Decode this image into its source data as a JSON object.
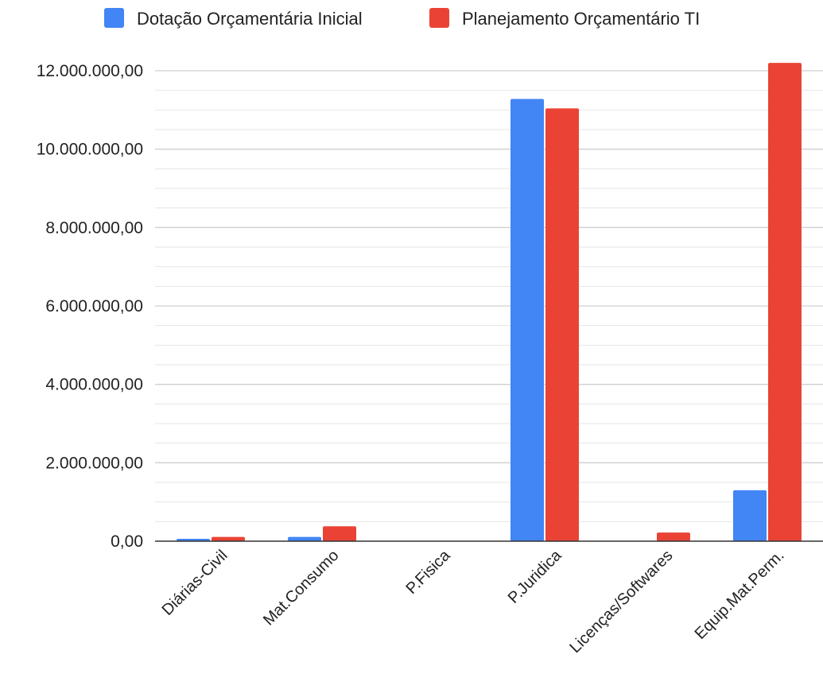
{
  "chart_data": {
    "type": "bar",
    "title": "",
    "xlabel": "",
    "ylabel": "",
    "categories": [
      "Diárias-Civil",
      "Mat.Consumo",
      "P.Fisica",
      "P.Juridica",
      "Licenças/Softwares",
      "Equip.Mat.Perm."
    ],
    "series": [
      {
        "name": "Dotação Orçamentária Inicial",
        "color": "#4285F4",
        "values": [
          60000,
          110000,
          0,
          11280000,
          0,
          1300000
        ]
      },
      {
        "name": "Planejamento Orçamentário TI",
        "color": "#EA4335",
        "values": [
          110000,
          380000,
          0,
          11040000,
          220000,
          12200000
        ]
      }
    ],
    "ylim": [
      0,
      12000000
    ],
    "yticks": [
      "0,00",
      "2.000.000,00",
      "4.000.000,00",
      "6.000.000,00",
      "8.000.000,00",
      "10.000.000,00",
      "12.000.000,00"
    ],
    "ytick_values": [
      0,
      2000000,
      4000000,
      6000000,
      8000000,
      10000000,
      12000000
    ],
    "grid": true,
    "legend_position": "top"
  }
}
